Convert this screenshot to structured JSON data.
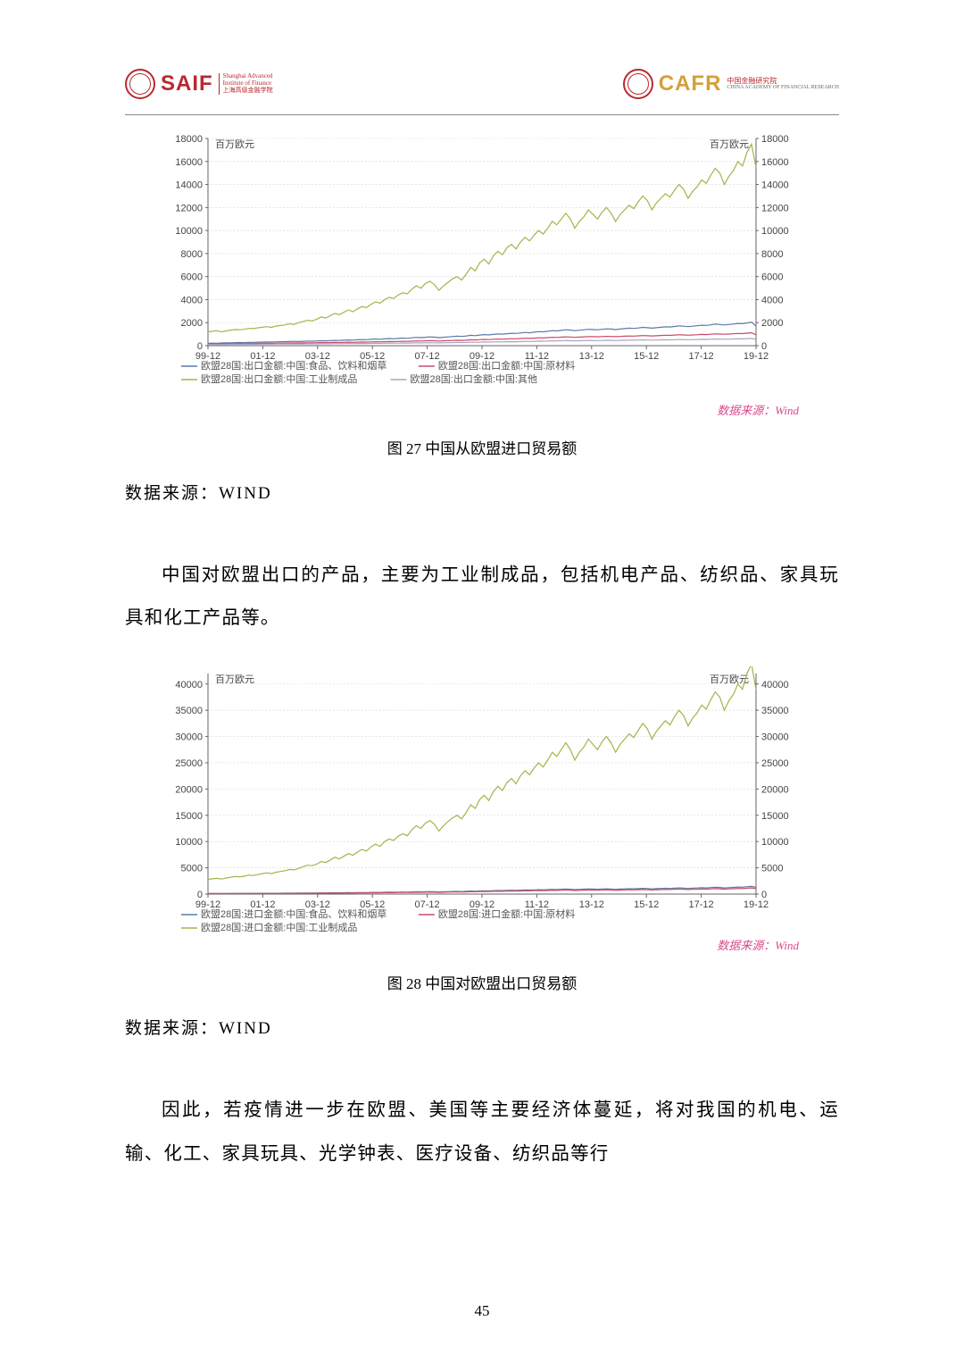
{
  "header": {
    "left_logo_text": "SAIF",
    "left_logo_sub1": "Shanghai Advanced",
    "left_logo_sub2": "Institute of Finance",
    "left_logo_sub3": "上海高级金融学院",
    "right_logo_text": "CAFR",
    "right_logo_sub1": "中国金融研究院",
    "right_logo_sub2": "CHINA ACADEMY OF FINANCIAL RESEARCH"
  },
  "chart1": {
    "type": "line",
    "y_unit_left": "百万欧元",
    "y_unit_right": "百万欧元",
    "x_ticks": [
      "99-12",
      "01-12",
      "03-12",
      "05-12",
      "07-12",
      "09-12",
      "11-12",
      "13-12",
      "15-12",
      "17-12",
      "19-12"
    ],
    "y_ticks": [
      0,
      2000,
      4000,
      6000,
      8000,
      10000,
      12000,
      14000,
      16000,
      18000
    ],
    "ylim": [
      0,
      18000
    ],
    "legend": [
      {
        "label": "欧盟28国:出口金额:中国:食品、饮料和烟草",
        "color": "#5b7aa8"
      },
      {
        "label": "欧盟28国:出口金额:中国:原材料",
        "color": "#c94a6a"
      },
      {
        "label": "欧盟28国:出口金额:中国:工业制成品",
        "color": "#9cb84a"
      },
      {
        "label": "欧盟28国:出口金额:中国:其他",
        "color": "#b0a0c0"
      }
    ],
    "series_main_color": "#9cb84a",
    "series_low_colors": [
      "#5b7aa8",
      "#c94a6a",
      "#b0a0c0"
    ],
    "grid_color": "#d8d8d8",
    "axis_color": "#666666",
    "tick_fontsize": 11,
    "unit_fontsize": 11,
    "legend_fontsize": 11,
    "source_label": "数据来源：Wind",
    "caption": "图 27 中国从欧盟进口贸易额",
    "data_source_line": "数据来源：WIND",
    "main_series": [
      1200,
      1250,
      1300,
      1200,
      1280,
      1350,
      1400,
      1380,
      1420,
      1500,
      1480,
      1550,
      1600,
      1650,
      1580,
      1700,
      1750,
      1800,
      1900,
      1850,
      2000,
      2100,
      2200,
      2150,
      2300,
      2500,
      2400,
      2600,
      2800,
      2700,
      2900,
      3100,
      2950,
      3200,
      3400,
      3300,
      3600,
      3800,
      3700,
      4000,
      4200,
      4100,
      4400,
      4600,
      4500,
      4900,
      5200,
      5000,
      5400,
      5600,
      5300,
      4800,
      5200,
      5500,
      5800,
      6000,
      5700,
      6200,
      6800,
      6500,
      7200,
      7500,
      7100,
      7800,
      8200,
      7900,
      8500,
      8800,
      8400,
      9000,
      9400,
      9100,
      9600,
      10000,
      9700,
      10200,
      10800,
      10500,
      11000,
      11500,
      11000,
      10200,
      10800,
      11200,
      11800,
      11400,
      11000,
      11600,
      12000,
      11500,
      10800,
      11400,
      11800,
      12200,
      11900,
      12500,
      13000,
      12600,
      11800,
      12400,
      12800,
      13200,
      12900,
      13500,
      14000,
      13600,
      12800,
      13400,
      13800,
      14400,
      14100,
      14800,
      15400,
      15000,
      14000,
      14700,
      15200,
      16000,
      15600,
      16800,
      17500,
      15500
    ],
    "low_series_a": [
      200,
      220,
      210,
      230,
      240,
      250,
      260,
      270,
      260,
      280,
      290,
      300,
      310,
      320,
      310,
      330,
      340,
      350,
      360,
      370,
      360,
      380,
      400,
      390,
      410,
      430,
      420,
      440,
      460,
      450,
      470,
      500,
      480,
      510,
      530,
      520,
      550,
      580,
      560,
      590,
      620,
      600,
      630,
      660,
      640,
      680,
      720,
      700,
      730,
      760,
      740,
      700,
      730,
      760,
      790,
      820,
      800,
      840,
      900,
      870,
      920,
      960,
      940,
      980,
      1020,
      1000,
      1040,
      1080,
      1060,
      1100,
      1150,
      1120,
      1170,
      1220,
      1200,
      1250,
      1300,
      1280,
      1330,
      1380,
      1350,
      1300,
      1340,
      1380,
      1420,
      1400,
      1380,
      1420,
      1460,
      1440,
      1400,
      1440,
      1480,
      1520,
      1500,
      1540,
      1590,
      1560,
      1520,
      1560,
      1600,
      1640,
      1620,
      1670,
      1720,
      1690,
      1650,
      1690,
      1730,
      1780,
      1760,
      1810,
      1870,
      1840,
      1800,
      1840,
      1880,
      1930,
      1910,
      1970,
      2040,
      1700
    ],
    "low_series_b": [
      150,
      160,
      155,
      165,
      170,
      175,
      180,
      185,
      180,
      190,
      195,
      200,
      205,
      210,
      205,
      215,
      220,
      225,
      230,
      235,
      230,
      240,
      250,
      245,
      255,
      265,
      260,
      270,
      280,
      275,
      285,
      300,
      290,
      305,
      315,
      310,
      325,
      340,
      330,
      345,
      360,
      350,
      365,
      380,
      370,
      390,
      415,
      405,
      420,
      435,
      425,
      405,
      420,
      435,
      450,
      465,
      455,
      475,
      510,
      495,
      520,
      540,
      530,
      555,
      575,
      565,
      585,
      605,
      595,
      620,
      645,
      630,
      655,
      680,
      670,
      695,
      725,
      710,
      740,
      770,
      750,
      725,
      745,
      770,
      790,
      780,
      770,
      790,
      810,
      800,
      780,
      800,
      820,
      840,
      830,
      855,
      880,
      865,
      845,
      865,
      885,
      905,
      895,
      920,
      950,
      930,
      910,
      930,
      950,
      975,
      965,
      990,
      1025,
      1010,
      990,
      1010,
      1035,
      1060,
      1050,
      1085,
      1120,
      950
    ],
    "low_series_c": [
      100,
      105,
      102,
      108,
      110,
      113,
      116,
      119,
      116,
      122,
      125,
      128,
      131,
      134,
      131,
      136,
      139,
      142,
      145,
      148,
      145,
      150,
      155,
      152,
      158,
      163,
      160,
      166,
      172,
      169,
      175,
      183,
      178,
      186,
      192,
      189,
      197,
      206,
      201,
      209,
      218,
      212,
      220,
      229,
      223,
      233,
      247,
      242,
      250,
      258,
      252,
      242,
      250,
      258,
      266,
      274,
      269,
      279,
      299,
      291,
      304,
      315,
      309,
      323,
      334,
      328,
      339,
      350,
      344,
      358,
      372,
      364,
      378,
      392,
      385,
      400,
      416,
      408,
      424,
      441,
      430,
      416,
      426,
      440,
      451,
      446,
      440,
      451,
      462,
      456,
      446,
      456,
      467,
      478,
      472,
      486,
      499,
      491,
      480,
      491,
      502,
      513,
      507,
      521,
      537,
      527,
      516,
      527,
      538,
      551,
      545,
      560,
      578,
      570,
      559,
      570,
      584,
      597,
      591,
      610,
      630,
      540
    ]
  },
  "para1": "中国对欧盟出口的产品，主要为工业制成品，包括机电产品、纺织品、家具玩具和化工产品等。",
  "chart2": {
    "type": "line",
    "y_unit_left": "百万欧元",
    "y_unit_right": "百万欧元",
    "x_ticks": [
      "99-12",
      "01-12",
      "03-12",
      "05-12",
      "07-12",
      "09-12",
      "11-12",
      "13-12",
      "15-12",
      "17-12",
      "19-12"
    ],
    "y_ticks": [
      0,
      5000,
      10000,
      15000,
      20000,
      25000,
      30000,
      35000,
      40000
    ],
    "ylim": [
      0,
      42000
    ],
    "legend": [
      {
        "label": "欧盟28国:进口金额:中国:食品、饮料和烟草",
        "color": "#5b7aa8"
      },
      {
        "label": "欧盟28国:进口金额:中国:原材料",
        "color": "#c94a6a"
      },
      {
        "label": "欧盟28国:进口金额:中国:工业制成品",
        "color": "#9cb84a"
      }
    ],
    "series_main_color": "#9cb84a",
    "series_low_colors": [
      "#5b7aa8",
      "#c94a6a"
    ],
    "grid_color": "#d8d8d8",
    "axis_color": "#666666",
    "tick_fontsize": 11,
    "unit_fontsize": 11,
    "legend_fontsize": 11,
    "source_label": "数据来源：Wind",
    "caption": "图 28 中国对欧盟出口贸易额",
    "data_source_line": "数据来源：WIND",
    "main_series": [
      2800,
      2900,
      3000,
      2850,
      3050,
      3200,
      3350,
      3300,
      3400,
      3600,
      3550,
      3700,
      3900,
      4050,
      3900,
      4150,
      4300,
      4450,
      4700,
      4600,
      4900,
      5200,
      5500,
      5400,
      5700,
      6200,
      6000,
      6500,
      7000,
      6700,
      7200,
      7700,
      7400,
      8000,
      8500,
      8200,
      9000,
      9500,
      9100,
      10000,
      10500,
      10200,
      11000,
      11500,
      11100,
      12200,
      13000,
      12500,
      13500,
      14000,
      13300,
      12000,
      13000,
      13800,
      14500,
      15000,
      14300,
      15500,
      17000,
      16300,
      18000,
      18800,
      17800,
      19500,
      20500,
      19700,
      21200,
      22000,
      21000,
      22500,
      23500,
      22700,
      24000,
      25000,
      24200,
      25500,
      27000,
      26200,
      27500,
      28800,
      27500,
      25500,
      27000,
      28000,
      29500,
      28500,
      27500,
      29000,
      30000,
      28800,
      27000,
      28500,
      29500,
      30500,
      29800,
      31200,
      32500,
      31500,
      29500,
      31000,
      32000,
      33000,
      32200,
      33800,
      35000,
      34000,
      32000,
      33500,
      34500,
      36000,
      35200,
      37000,
      38500,
      37500,
      35000,
      36800,
      38000,
      40000,
      39000,
      42000,
      43800,
      39000
    ],
    "low_series_a": [
      100,
      105,
      110,
      108,
      115,
      120,
      125,
      123,
      128,
      135,
      132,
      138,
      145,
      150,
      148,
      155,
      160,
      165,
      172,
      170,
      180,
      189,
      198,
      195,
      205,
      220,
      214,
      230,
      246,
      237,
      252,
      268,
      258,
      278,
      294,
      284,
      310,
      325,
      312,
      342,
      358,
      348,
      374,
      391,
      378,
      413,
      439,
      422,
      455,
      471,
      448,
      405,
      438,
      464,
      487,
      503,
      480,
      520,
      570,
      547,
      603,
      629,
      596,
      653,
      686,
      660,
      709,
      736,
      703,
      753,
      786,
      760,
      803,
      836,
      810,
      853,
      903,
      876,
      920,
      962,
      920,
      853,
      903,
      936,
      986,
      953,
      920,
      970,
      1003,
      963,
      903,
      953,
      987,
      1020,
      996,
      1043,
      1087,
      1053,
      987,
      1037,
      1070,
      1103,
      1077,
      1130,
      1170,
      1137,
      1070,
      1120,
      1153,
      1204,
      1177,
      1237,
      1287,
      1253,
      1170,
      1230,
      1270,
      1337,
      1303,
      1404,
      1464,
      1303
    ],
    "low_series_b": [
      80,
      84,
      88,
      86,
      92,
      96,
      100,
      98,
      102,
      108,
      106,
      110,
      116,
      120,
      118,
      124,
      128,
      132,
      138,
      136,
      144,
      151,
      158,
      156,
      164,
      176,
      171,
      184,
      197,
      190,
      202,
      214,
      206,
      222,
      235,
      227,
      248,
      260,
      250,
      274,
      286,
      278,
      299,
      313,
      302,
      330,
      351,
      338,
      364,
      377,
      358,
      324,
      350,
      371,
      390,
      402,
      384,
      416,
      456,
      438,
      482,
      503,
      477,
      522,
      549,
      528,
      567,
      589,
      562,
      602,
      629,
      608,
      642,
      669,
      648,
      682,
      722,
      701,
      736,
      770,
      736,
      682,
      722,
      749,
      789,
      762,
      736,
      776,
      802,
      770,
      722,
      762,
      790,
      816,
      797,
      834,
      870,
      842,
      790,
      830,
      856,
      882,
      862,
      904,
      936,
      910,
      856,
      896,
      922,
      963,
      942,
      990,
      1030,
      1002,
      936,
      984,
      1016,
      1070,
      1042,
      1123,
      1171,
      1042
    ]
  },
  "para2": "因此，若疫情进一步在欧盟、美国等主要经济体蔓延，将对我国的机电、运输、化工、家具玩具、光学钟表、医疗设备、纺织品等行",
  "page_number": "45"
}
